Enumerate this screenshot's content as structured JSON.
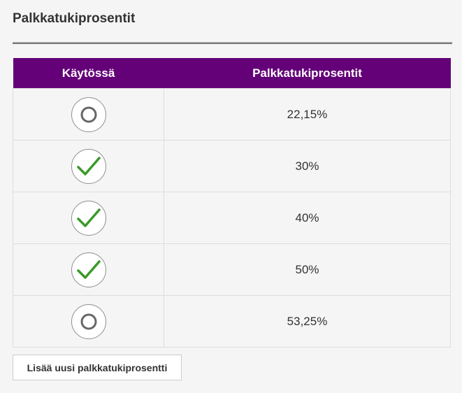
{
  "page": {
    "title": "Palkkatukiprosentit"
  },
  "table": {
    "headers": {
      "enabled": "Käytössä",
      "percentage": "Palkkatukiprosentit"
    },
    "rows": [
      {
        "enabled": false,
        "enabled_icon": "empty-circle-icon",
        "percentage": "22,15%"
      },
      {
        "enabled": true,
        "enabled_icon": "checkmark-icon",
        "percentage": "30%"
      },
      {
        "enabled": true,
        "enabled_icon": "checkmark-icon",
        "percentage": "40%"
      },
      {
        "enabled": true,
        "enabled_icon": "checkmark-icon",
        "percentage": "50%"
      },
      {
        "enabled": false,
        "enabled_icon": "empty-circle-icon",
        "percentage": "53,25%"
      }
    ]
  },
  "actions": {
    "add_label": "Lisää uusi palkkatukiprosentti"
  },
  "colors": {
    "header_bg": "#640078",
    "header_text": "#ffffff",
    "check": "#3a9a2a",
    "circle": "#666666"
  }
}
